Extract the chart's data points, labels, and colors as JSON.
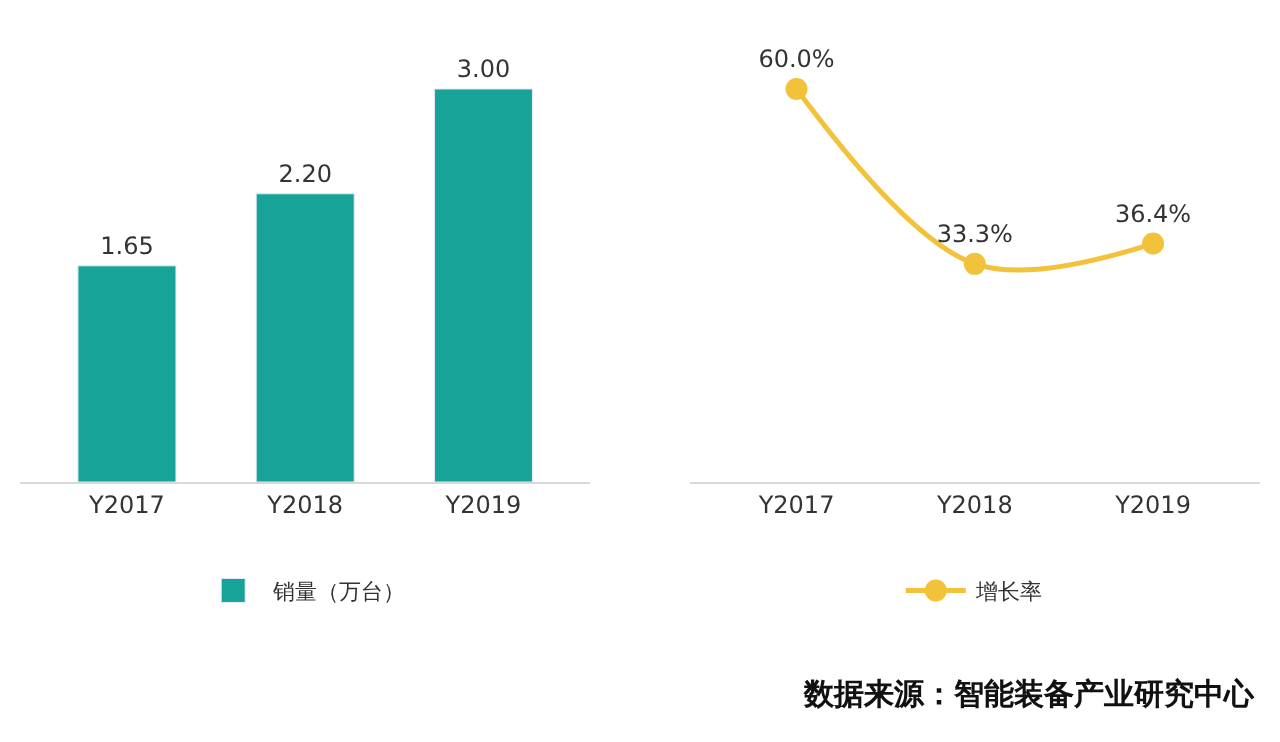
{
  "chart_data": [
    {
      "type": "bar",
      "categories": [
        "Y2017",
        "Y2018",
        "Y2019"
      ],
      "series": [
        {
          "name": "销量（万台）",
          "color": "#17a398",
          "values": [
            1.65,
            2.2,
            3.0
          ],
          "value_labels": [
            "1.65",
            "2.20",
            "3.00"
          ]
        }
      ],
      "legend": "bottom"
    },
    {
      "type": "line",
      "categories": [
        "Y2017",
        "Y2018",
        "Y2019"
      ],
      "series": [
        {
          "name": "增长率",
          "color": "#f2c23a",
          "values": [
            60.0,
            33.3,
            36.4
          ],
          "value_labels": [
            "60.0%",
            "33.3%",
            "36.4%"
          ]
        }
      ],
      "legend": "bottom",
      "marker": "circle",
      "line_style": "solid",
      "annotations": [
        "数据来源：智能装备产业研究中心"
      ]
    }
  ]
}
